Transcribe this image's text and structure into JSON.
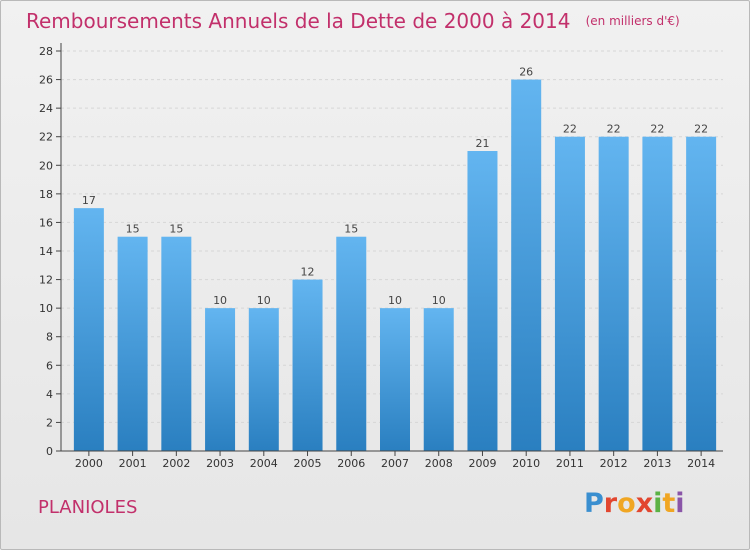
{
  "title": "Remboursements Annuels de la Dette de 2000 à 2014",
  "unit": "(en milliers d'€)",
  "place": "PLANIOLES",
  "logo": {
    "text": "Proxiti"
  },
  "colors": {
    "title": "#c2306b",
    "bar_light": "#63b5f0",
    "bar_dark": "#2a7fc0",
    "axis": "#444444",
    "grid": "#d6d6d6"
  },
  "chart_data": {
    "type": "bar",
    "categories": [
      "2000",
      "2001",
      "2002",
      "2003",
      "2004",
      "2005",
      "2006",
      "2007",
      "2008",
      "2009",
      "2010",
      "2011",
      "2012",
      "2013",
      "2014"
    ],
    "values": [
      17,
      15,
      15,
      10,
      10,
      12,
      15,
      10,
      10,
      21,
      26,
      22,
      22,
      22,
      22
    ],
    "data_labels": [
      "17",
      "15",
      "15",
      "10",
      "10",
      "12",
      "15",
      "10",
      "10",
      "21",
      "26",
      "22",
      "22",
      "22",
      "22"
    ],
    "yticks": [
      "0",
      "2",
      "4",
      "6",
      "8",
      "10",
      "12",
      "14",
      "16",
      "18",
      "20",
      "22",
      "24",
      "26",
      "28"
    ],
    "ylim": [
      0,
      28
    ],
    "grid": true,
    "legend": "none"
  }
}
